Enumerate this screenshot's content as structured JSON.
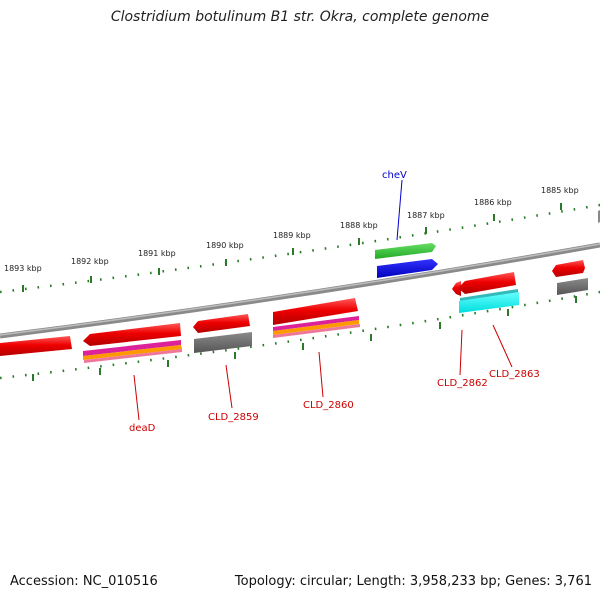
{
  "title": "Clostridium botulinum B1 str. Okra, complete genome",
  "footer": {
    "accession": "Accession: NC_010516",
    "summary": "Topology: circular; Length: 3,958,233 bp; Genes: 3,761"
  },
  "ticks": [
    "1893 kbp",
    "1892 kbp",
    "1891 kbp",
    "1890 kbp",
    "1889 kbp",
    "1888 kbp",
    "1887 kbp",
    "1886 kbp",
    "1885 kbp"
  ],
  "gene_labels": [
    {
      "name": "cheV",
      "color": "#0000cc"
    },
    {
      "name": "deaD",
      "color": "#cc0000"
    },
    {
      "name": "CLD_2859",
      "color": "#cc0000"
    },
    {
      "name": "CLD_2860",
      "color": "#cc0000"
    },
    {
      "name": "CLD_2862",
      "color": "#cc0000"
    },
    {
      "name": "CLD_2863",
      "color": "#cc0000"
    }
  ],
  "colors": {
    "cds": "#ee0000",
    "backbone": "#888888",
    "tick": "#2a7a2a",
    "gray_feature": "#666666",
    "magenta": "#dd2299",
    "orange": "#ff9900",
    "cyan": "#00eeee",
    "green": "#33cc33",
    "blue": "#0000ee"
  }
}
